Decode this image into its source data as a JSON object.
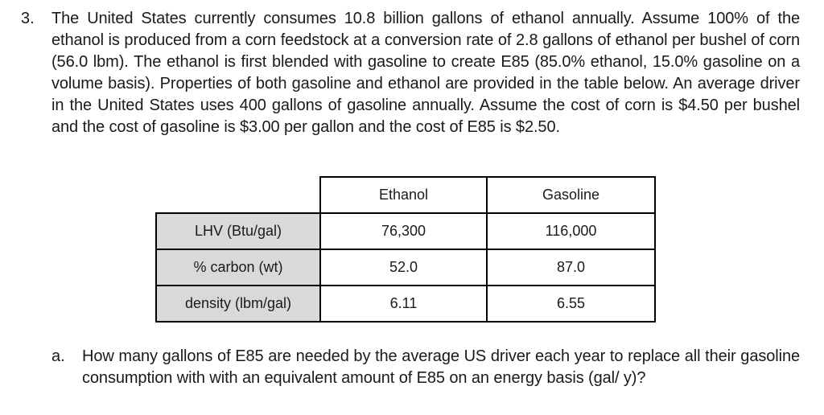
{
  "problem": {
    "number": "3.",
    "text": "The United States currently consumes 10.8 billion gallons of ethanol annually. Assume 100% of the ethanol is produced from a corn feedstock at a conversion rate of 2.8 gallons of ethanol per bushel of corn (56.0 lbm). The ethanol is first blended with gasoline to create E85 (85.0% ethanol, 15.0% gasoline on a volume basis). Properties of both gasoline and ethanol are provided in the table below. An average driver in the United States uses 400 gallons of gasoline annually. Assume the cost of corn is $4.50 per bushel and the cost of gasoline is $3.00 per gallon and the cost of E85 is $2.50."
  },
  "table": {
    "columns": [
      "Ethanol",
      "Gasoline"
    ],
    "rows": [
      {
        "label": "LHV (Btu/gal)",
        "ethanol": "76,300",
        "gasoline": "116,000"
      },
      {
        "label": "% carbon (wt)",
        "ethanol": "52.0",
        "gasoline": "87.0"
      },
      {
        "label": "density (lbm/gal)",
        "ethanol": "6.11",
        "gasoline": "6.55"
      }
    ]
  },
  "sub_question": {
    "letter": "a.",
    "text": "How many gallons of E85 are needed by the average US driver each year to replace all their gasoline consumption with with an equivalent amount of E85 on an energy basis (gal/ y)?"
  }
}
